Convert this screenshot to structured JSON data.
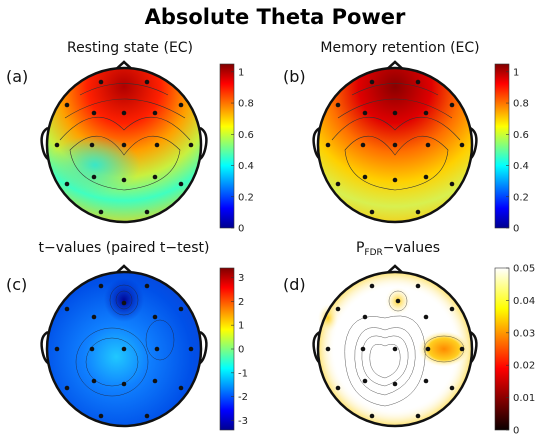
{
  "title": "Absolute Theta Power",
  "panels": [
    {
      "label": "(a)",
      "title": "Resting state (EC)",
      "colormap": "jet",
      "range": [
        0,
        1.05
      ],
      "ticks": [
        "0",
        "0.2",
        "0.4",
        "0.6",
        "0.8",
        "1"
      ],
      "tick_values": [
        0,
        0.2,
        0.4,
        0.6,
        0.8,
        1
      ]
    },
    {
      "label": "(b)",
      "title": "Memory retention (EC)",
      "colormap": "jet",
      "range": [
        0,
        1.05
      ],
      "ticks": [
        "0",
        "0.2",
        "0.4",
        "0.6",
        "0.8",
        "1"
      ],
      "tick_values": [
        0,
        0.2,
        0.4,
        0.6,
        0.8,
        1
      ]
    },
    {
      "label": "(c)",
      "title": "t−values (paired t−test)",
      "colormap": "jet",
      "range": [
        -3.4,
        3.4
      ],
      "ticks": [
        "-3",
        "-2",
        "-1",
        "0",
        "1",
        "2",
        "3"
      ],
      "tick_values": [
        -3,
        -2,
        -1,
        0,
        1,
        2,
        3
      ]
    },
    {
      "label": "(d)",
      "title_main": "P",
      "title_sub": "FDR",
      "title_rest": "−values",
      "colormap": "hot",
      "range": [
        0,
        0.05
      ],
      "ticks": [
        "0",
        "0.01",
        "0.02",
        "0.03",
        "0.04",
        "0.05"
      ],
      "tick_values": [
        0,
        0.01,
        0.02,
        0.03,
        0.04,
        0.05
      ]
    }
  ],
  "colors": {
    "jet": [
      "#00008f",
      "#0000ff",
      "#00ffff",
      "#ffff00",
      "#ff0000",
      "#800000"
    ],
    "hot": [
      "#0a0000",
      "#ff0000",
      "#ffff00",
      "#ffffff"
    ]
  }
}
